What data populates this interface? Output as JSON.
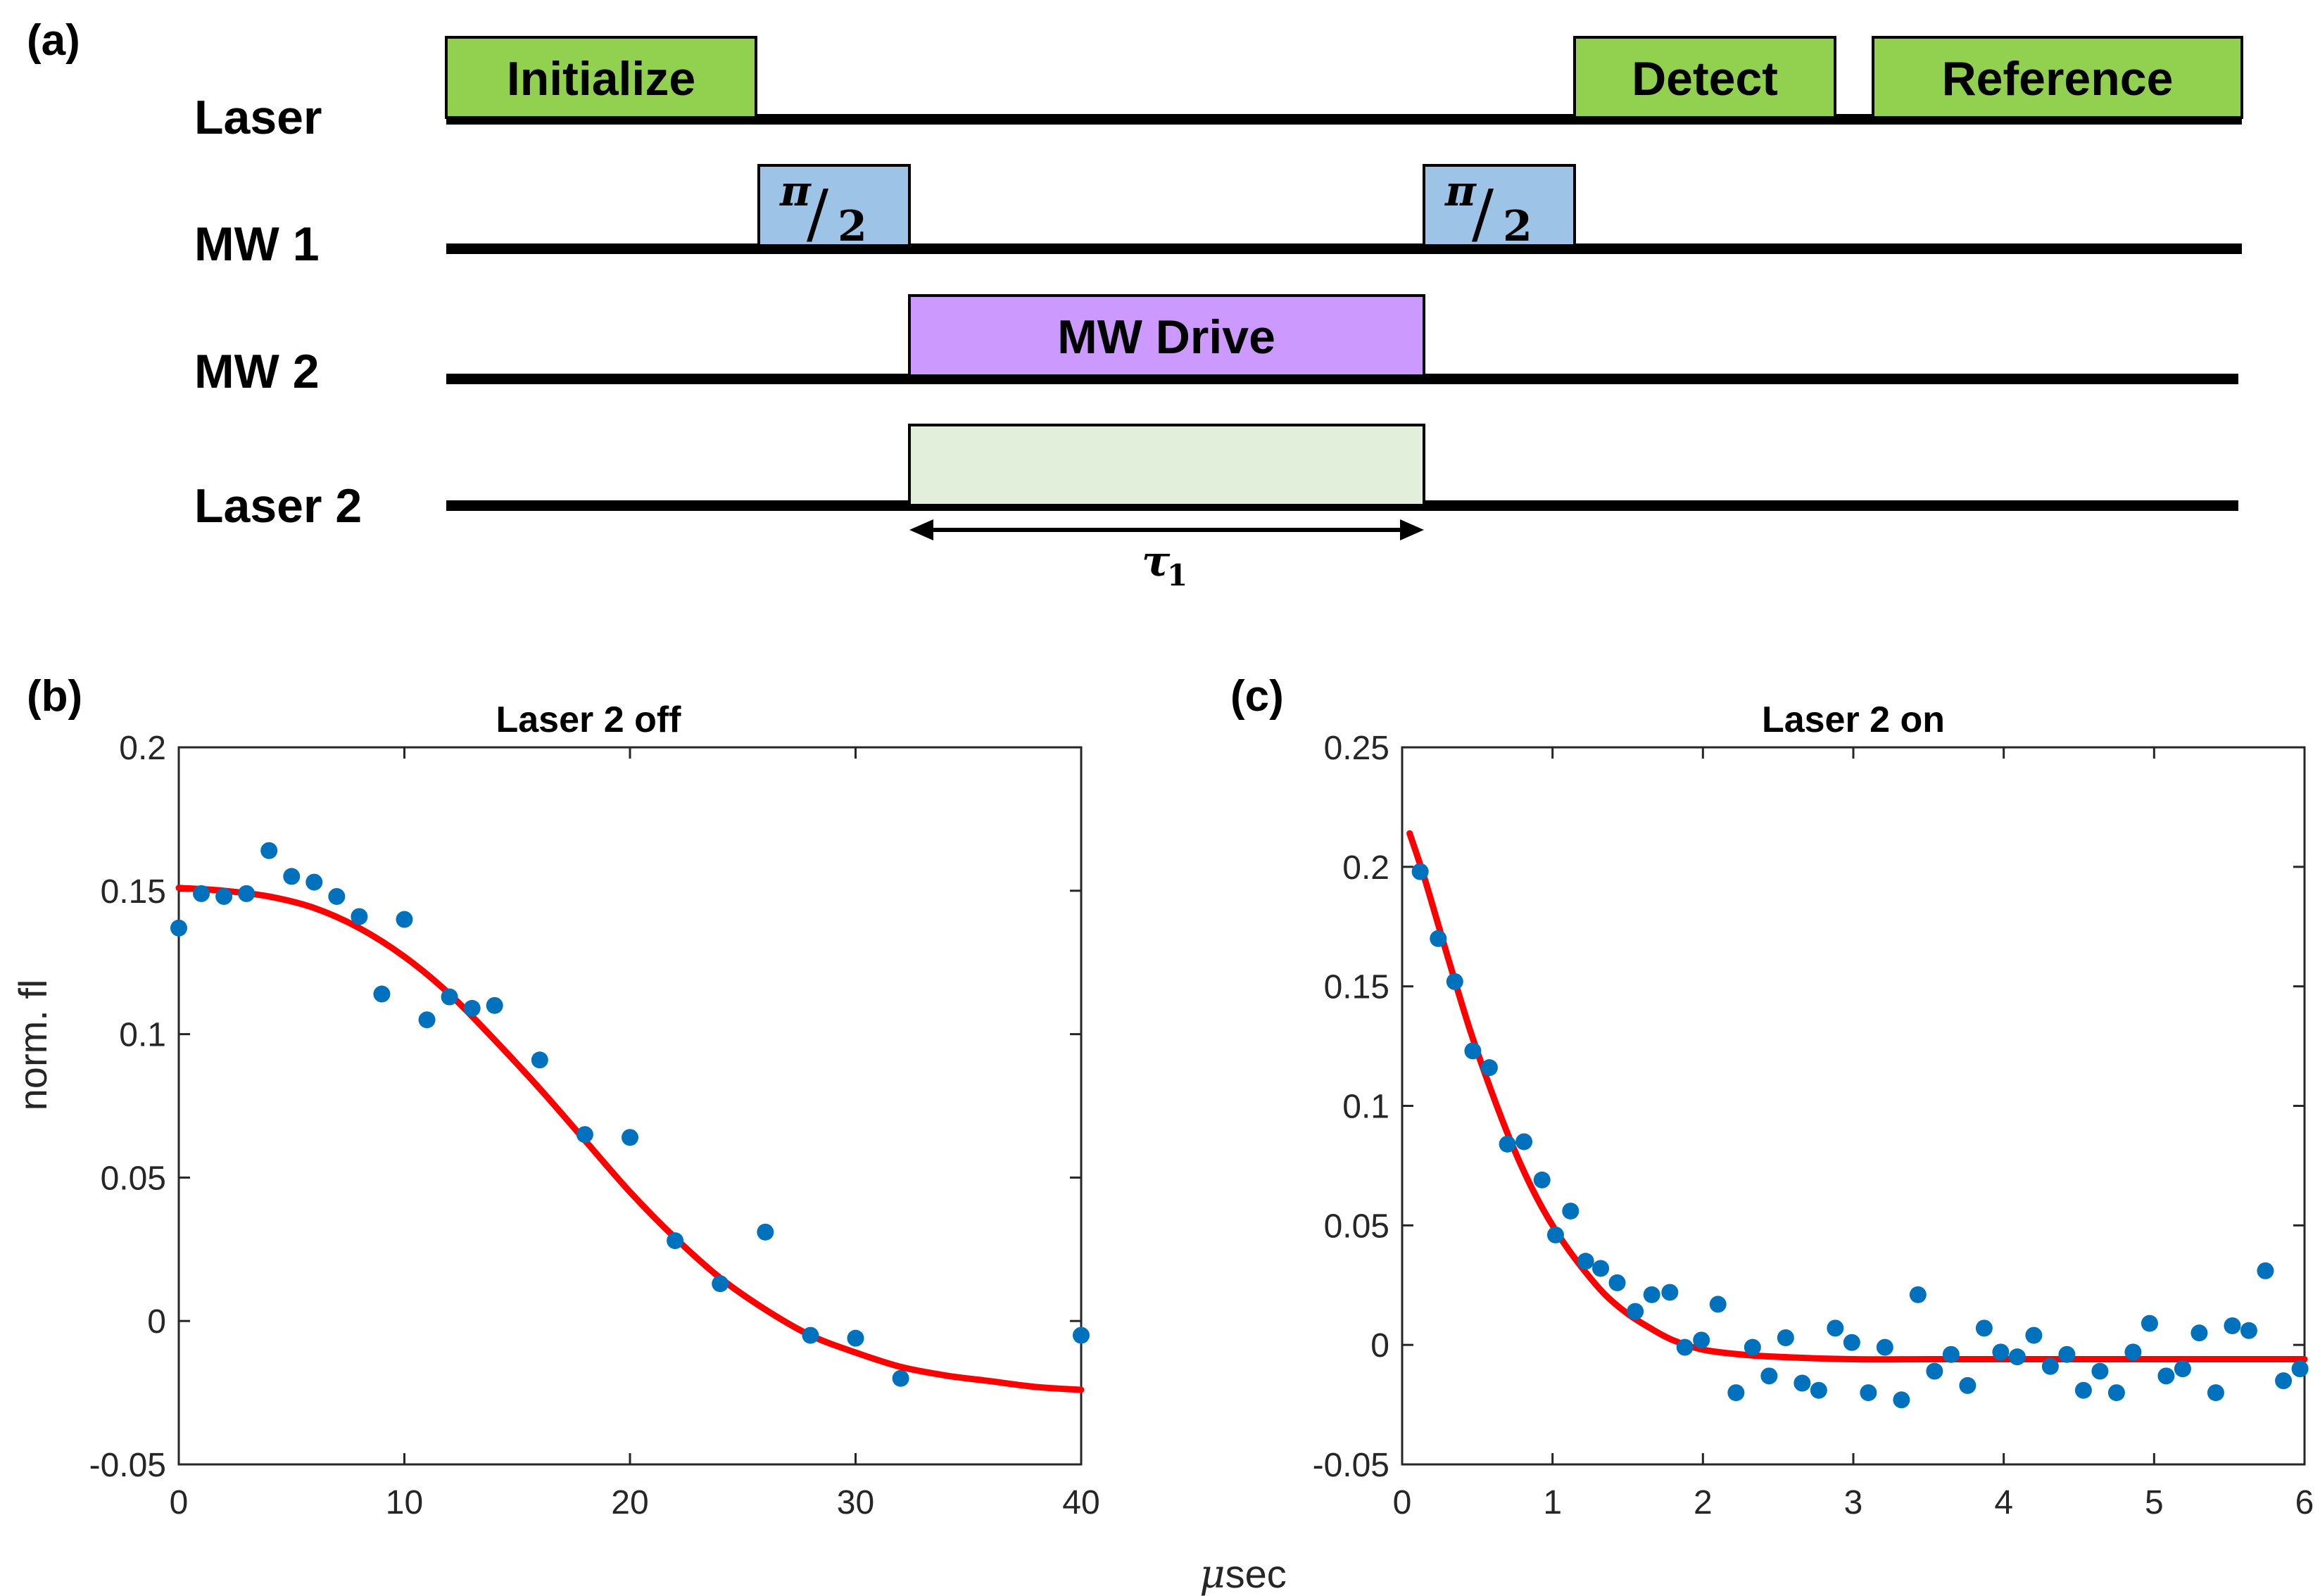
{
  "panel_labels": {
    "a": "(a)",
    "b": "(b)",
    "c": "(c)"
  },
  "pulse_sequence": {
    "rows": [
      {
        "label": "Laser"
      },
      {
        "label": "MW 1"
      },
      {
        "label": "MW 2"
      },
      {
        "label": "Laser 2"
      }
    ],
    "boxes": {
      "initialize": "Initialize",
      "detect": "Detect",
      "reference": "Reference",
      "pi_half_symbol": "π",
      "pi_half_den": "2",
      "mw_drive": "MW Drive"
    },
    "tau_symbol": "τ",
    "tau_sub": "1",
    "colors": {
      "laser": "#92D050",
      "mw1": "#9DC3E6",
      "mw2": "#CC99FF",
      "laser2": "#E2EFDA"
    }
  },
  "chart_data": [
    {
      "type": "scatter",
      "title": "Laser 2 off",
      "xlabel": "",
      "ylabel": "norm. fl",
      "xlim": [
        0,
        40
      ],
      "ylim": [
        -0.05,
        0.2
      ],
      "xticks": [
        0,
        10,
        20,
        30,
        40
      ],
      "yticks": [
        -0.05,
        0,
        0.05,
        0.1,
        0.15,
        0.2
      ],
      "xtick_labels": [
        "0",
        "10",
        "20",
        "30",
        "40"
      ],
      "ytick_labels": [
        "-0.05",
        "0",
        "0.05",
        "0.1",
        "0.15",
        "0.2"
      ],
      "series": [
        {
          "name": "data",
          "color": "#0072BD",
          "x": [
            0,
            1,
            2,
            3,
            4,
            5,
            6,
            7,
            8,
            9,
            10,
            11,
            12,
            13,
            14,
            16,
            18,
            20,
            22,
            24,
            26,
            28,
            30,
            32,
            40
          ],
          "y": [
            0.137,
            0.149,
            0.148,
            0.149,
            0.164,
            0.155,
            0.153,
            0.148,
            0.141,
            0.114,
            0.14,
            0.105,
            0.113,
            0.109,
            0.11,
            0.091,
            0.065,
            0.064,
            0.028,
            0.013,
            0.031,
            -0.005,
            -0.006,
            -0.02,
            -0.005
          ]
        },
        {
          "name": "fit",
          "type": "line",
          "color": "#FF0000",
          "x": [
            0,
            2,
            4,
            6,
            8,
            10,
            12,
            14,
            16,
            18,
            20,
            22,
            24,
            26,
            28,
            30,
            32,
            34,
            36,
            38,
            40
          ],
          "y": [
            0.151,
            0.15,
            0.148,
            0.144,
            0.137,
            0.127,
            0.114,
            0.098,
            0.081,
            0.063,
            0.045,
            0.029,
            0.015,
            0.004,
            -0.005,
            -0.011,
            -0.016,
            -0.019,
            -0.021,
            -0.023,
            -0.024
          ]
        }
      ]
    },
    {
      "type": "scatter",
      "title": "Laser 2 on",
      "xlabel": "μsec",
      "ylabel": "",
      "xlim": [
        0,
        6
      ],
      "ylim": [
        -0.05,
        0.25
      ],
      "xticks": [
        0,
        1,
        2,
        3,
        4,
        5,
        6
      ],
      "yticks": [
        -0.05,
        0,
        0.05,
        0.1,
        0.15,
        0.2,
        0.25
      ],
      "xtick_labels": [
        "0",
        "1",
        "2",
        "3",
        "4",
        "5",
        "6"
      ],
      "ytick_labels": [
        "-0.05",
        "0",
        "0.05",
        "0.1",
        "0.15",
        "0.2",
        "0.25"
      ],
      "series": [
        {
          "name": "data",
          "color": "#0072BD",
          "x": [
            0.12,
            0.24,
            0.35,
            0.47,
            0.58,
            0.7,
            0.81,
            0.93,
            1.02,
            1.12,
            1.22,
            1.32,
            1.43,
            1.55,
            1.66,
            1.78,
            1.88,
            1.99,
            2.1,
            2.22,
            2.33,
            2.44,
            2.55,
            2.66,
            2.77,
            2.88,
            2.99,
            3.1,
            3.21,
            3.32,
            3.43,
            3.54,
            3.65,
            3.76,
            3.87,
            3.98,
            4.09,
            4.2,
            4.31,
            4.42,
            4.53,
            4.64,
            4.75,
            4.86,
            4.97,
            5.08,
            5.19,
            5.3,
            5.41,
            5.52,
            5.63,
            5.74,
            5.86,
            5.97
          ],
          "y": [
            0.198,
            0.17,
            0.152,
            0.123,
            0.116,
            0.084,
            0.085,
            0.069,
            0.046,
            0.056,
            0.035,
            0.032,
            0.026,
            0.014,
            0.021,
            0.022,
            -0.001,
            0.002,
            0.017,
            -0.02,
            -0.001,
            -0.013,
            0.003,
            -0.016,
            -0.019,
            0.007,
            0.001,
            -0.02,
            -0.001,
            -0.023,
            0.021,
            -0.011,
            -0.004,
            -0.017,
            0.007,
            -0.003,
            -0.005,
            0.004,
            -0.009,
            -0.004,
            -0.019,
            -0.011,
            -0.02,
            -0.003,
            0.009,
            -0.013,
            -0.01,
            0.005,
            -0.02,
            0.008,
            0.006,
            0.031,
            -0.015,
            -0.01
          ]
        },
        {
          "name": "fit",
          "type": "line",
          "color": "#FF0000",
          "x": [
            0.05,
            0.15,
            0.3,
            0.45,
            0.6,
            0.75,
            0.9,
            1.05,
            1.2,
            1.35,
            1.5,
            1.65,
            1.8,
            2.0,
            2.25,
            2.5,
            3.0,
            3.5,
            4.0,
            5.0,
            6.0
          ],
          "y": [
            0.214,
            0.195,
            0.163,
            0.132,
            0.105,
            0.081,
            0.061,
            0.045,
            0.032,
            0.021,
            0.013,
            0.007,
            0.002,
            -0.002,
            -0.004,
            -0.005,
            -0.006,
            -0.006,
            -0.006,
            -0.006,
            -0.006
          ]
        }
      ]
    }
  ]
}
